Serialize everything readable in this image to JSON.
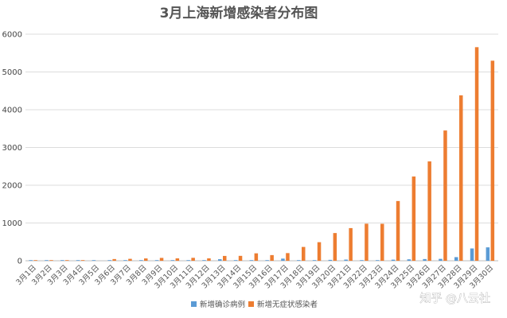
{
  "chart_data": {
    "type": "bar",
    "title": "3月上海新增感染者分布图",
    "xlabel": "",
    "ylabel": "",
    "ylim": [
      0,
      6000
    ],
    "yticks": [
      0,
      1000,
      2000,
      3000,
      4000,
      5000,
      6000
    ],
    "grid": true,
    "legend_position": "bottom",
    "categories": [
      "3月1日",
      "3月2日",
      "3月3日",
      "3月4日",
      "3月5日",
      "3月6日",
      "3月7日",
      "3月8日",
      "3月9日",
      "3月10日",
      "3月11日",
      "3月12日",
      "3月13日",
      "3月14日",
      "3月15日",
      "3月16日",
      "3月17日",
      "3月18日",
      "3月19日",
      "3月20日",
      "3月21日",
      "3月22日",
      "3月23日",
      "3月24日",
      "3月25日",
      "3月26日",
      "3月27日",
      "3月28日",
      "3月29日",
      "3月30日"
    ],
    "series": [
      {
        "name": "新增确诊病例",
        "color": "#5b9bd5",
        "values": [
          2,
          1,
          3,
          3,
          3,
          3,
          4,
          3,
          4,
          11,
          5,
          1,
          41,
          5,
          5,
          8,
          57,
          8,
          17,
          24,
          31,
          4,
          4,
          29,
          38,
          45,
          50,
          96,
          326,
          355
        ]
      },
      {
        "name": "新增无症状感染者",
        "color": "#ed7d31",
        "values": [
          2,
          2,
          14,
          16,
          0,
          45,
          51,
          62,
          76,
          64,
          78,
          64,
          128,
          130,
          197,
          150,
          203,
          366,
          492,
          734,
          865,
          981,
          979,
          1582,
          2231,
          2631,
          3450,
          4381,
          5656,
          5298
        ]
      }
    ]
  },
  "watermark": {
    "text": "知乎 @八云社"
  }
}
